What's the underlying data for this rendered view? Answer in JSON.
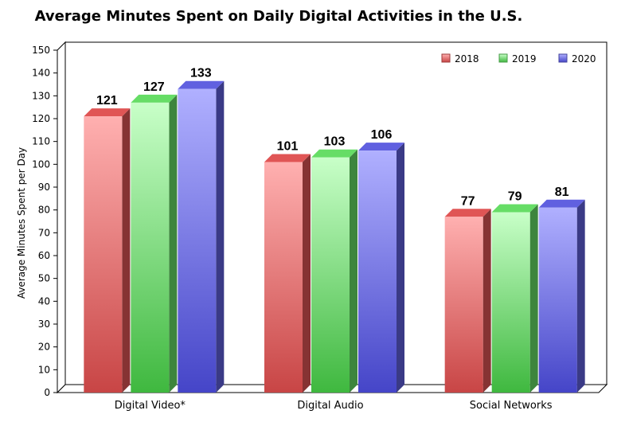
{
  "chart_data": {
    "type": "bar",
    "title": "Average Minutes Spent on Daily Digital Activities in the U.S.",
    "xlabel": "",
    "ylabel": "Average Minutes Spent per Day",
    "ylim": [
      0,
      150
    ],
    "yticks": [
      0,
      10,
      20,
      30,
      40,
      50,
      60,
      70,
      80,
      90,
      100,
      110,
      120,
      130,
      140,
      150
    ],
    "categories": [
      "Digital Video*",
      "Digital Audio",
      "Social Networks"
    ],
    "series": [
      {
        "name": "2018",
        "values": [
          121,
          101,
          77
        ],
        "color": "#e05555"
      },
      {
        "name": "2019",
        "values": [
          127,
          103,
          79
        ],
        "color": "#66dd66"
      },
      {
        "name": "2020",
        "values": [
          133,
          106,
          81
        ],
        "color": "#6060e0"
      }
    ],
    "legend_position": "top-right",
    "grid": false
  }
}
